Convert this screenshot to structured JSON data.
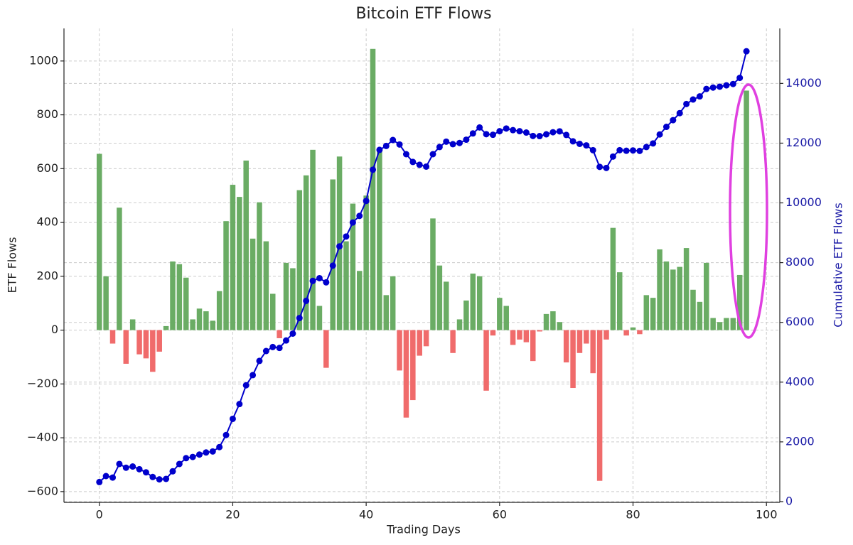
{
  "chart_data": {
    "type": "bar",
    "title": "Bitcoin ETF Flows",
    "x_label": "Trading Days",
    "y_label": "ETF Flows",
    "y2_label": "Cumulative ETF Flows",
    "x": [
      0,
      1,
      2,
      3,
      4,
      5,
      6,
      7,
      8,
      9,
      10,
      11,
      12,
      13,
      14,
      15,
      16,
      17,
      18,
      19,
      20,
      21,
      22,
      23,
      24,
      25,
      26,
      27,
      28,
      29,
      30,
      31,
      32,
      33,
      34,
      35,
      36,
      37,
      38,
      39,
      40,
      41,
      42,
      43,
      44,
      45,
      46,
      47,
      48,
      49,
      50,
      51,
      52,
      53,
      54,
      55,
      56,
      57,
      58,
      59,
      60,
      61,
      62,
      63,
      64,
      65,
      66,
      67,
      68,
      69,
      70,
      71,
      72,
      73,
      74,
      75,
      76,
      77,
      78,
      79,
      80,
      81,
      82,
      83,
      84,
      85,
      86,
      87,
      88,
      89,
      90,
      91,
      92,
      93,
      94,
      95,
      96,
      97
    ],
    "values": [
      655,
      200,
      -50,
      455,
      -125,
      40,
      -90,
      -105,
      -155,
      -80,
      15,
      255,
      245,
      195,
      40,
      80,
      70,
      35,
      145,
      405,
      540,
      495,
      630,
      340,
      475,
      330,
      135,
      -30,
      250,
      230,
      520,
      575,
      670,
      90,
      -140,
      560,
      645,
      330,
      470,
      220,
      500,
      1045,
      665,
      130,
      200,
      -150,
      -325,
      -260,
      -95,
      -60,
      415,
      240,
      180,
      -85,
      40,
      110,
      210,
      200,
      -225,
      -20,
      120,
      90,
      -55,
      -35,
      -45,
      -115,
      -5,
      60,
      70,
      30,
      -120,
      -215,
      -85,
      -50,
      -160,
      -560,
      -35,
      380,
      215,
      -20,
      10,
      -15,
      130,
      120,
      300,
      255,
      225,
      235,
      305,
      150,
      105,
      250,
      45,
      30,
      45,
      45,
      205,
      890
    ],
    "positive_color": "#6aac64",
    "negative_color": "#f06b6b",
    "line_values": [
      655,
      855,
      805,
      1260,
      1135,
      1175,
      1085,
      980,
      825,
      745,
      760,
      1015,
      1260,
      1455,
      1495,
      1575,
      1645,
      1680,
      1825,
      2230,
      2770,
      3265,
      3895,
      4235,
      4710,
      5040,
      5175,
      5145,
      5395,
      5625,
      6145,
      6720,
      7390,
      7480,
      7340,
      7900,
      8545,
      8875,
      9345,
      9565,
      10065,
      11110,
      11775,
      11905,
      12105,
      11955,
      11630,
      11370,
      11275,
      11215,
      11630,
      11870,
      12050,
      11965,
      12005,
      12115,
      12325,
      12525,
      12300,
      12280,
      12400,
      12490,
      12435,
      12400,
      12355,
      12240,
      12235,
      12295,
      12365,
      12395,
      12275,
      12060,
      11975,
      11925,
      11765,
      11205,
      11170,
      11550,
      11765,
      11745,
      11755,
      11740,
      11870,
      11990,
      12290,
      12545,
      12770,
      13005,
      13310,
      13460,
      13565,
      13815,
      13860,
      13890,
      13935,
      13980,
      14185,
      15075
    ],
    "line_color": "#0000cc",
    "xlim": [
      -5.3,
      102
    ],
    "xticks": [
      0,
      20,
      40,
      60,
      80,
      100
    ],
    "ylim": [
      -640,
      1121
    ],
    "yticks": [
      {
        "value": -600,
        "label": "−600"
      },
      {
        "value": -400,
        "label": "−400"
      },
      {
        "value": -200,
        "label": "−200"
      },
      0,
      200,
      400,
      600,
      800,
      1000
    ],
    "y2lim": [
      -25,
      15840
    ],
    "y2ticks": [
      0,
      2000,
      4000,
      6000,
      8000,
      10000,
      12000,
      14000
    ],
    "y2_color": "#1a1aa6",
    "grid": true
  }
}
